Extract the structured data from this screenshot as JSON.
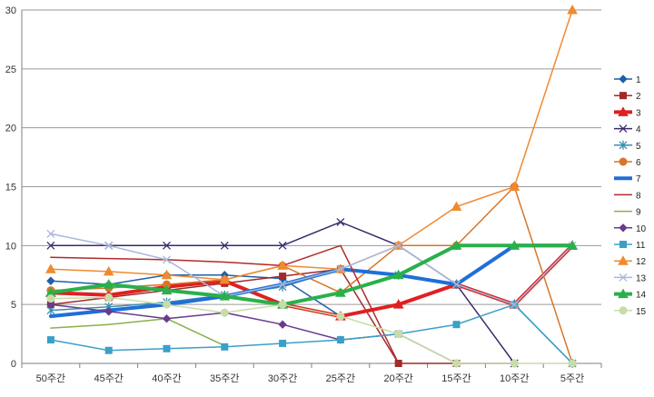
{
  "chart_data": {
    "type": "line",
    "categories": [
      "50주간",
      "45주간",
      "40주간",
      "35주간",
      "30주간",
      "25주간",
      "20주간",
      "15주간",
      "10주간",
      "5주간"
    ],
    "ylim": [
      0,
      30
    ],
    "yticks": [
      0,
      5,
      10,
      15,
      20,
      25,
      30
    ],
    "grid": true,
    "legend_position": "right",
    "series": [
      {
        "name": "1",
        "color": "#1f5fa8",
        "marker": "diamond",
        "values": [
          7,
          6.7,
          7.5,
          7.5,
          7.2,
          4,
          null,
          null,
          null,
          null
        ]
      },
      {
        "name": "2",
        "color": "#a02a2a",
        "marker": "square",
        "values": [
          5,
          5.6,
          6.2,
          6.8,
          7.4,
          8,
          0,
          0,
          null,
          null
        ]
      },
      {
        "name": "3",
        "color": "#e02020",
        "marker": "triangle",
        "values": [
          6,
          5.8,
          6.5,
          7,
          5,
          4,
          5,
          6.7,
          5,
          10
        ]
      },
      {
        "name": "4",
        "color": "#3b2a6b",
        "marker": "x",
        "values": [
          10,
          10,
          10,
          10,
          10,
          12,
          10,
          6.7,
          0,
          null
        ]
      },
      {
        "name": "5",
        "color": "#3a8fb0",
        "marker": "star",
        "values": [
          4.5,
          4.8,
          5.2,
          5.8,
          6.5,
          8,
          7.5,
          6.7,
          5,
          0
        ]
      },
      {
        "name": "6",
        "color": "#d7762a",
        "marker": "circle",
        "values": [
          6.2,
          6.4,
          6.7,
          7.1,
          8.3,
          6,
          10,
          10,
          15,
          0
        ]
      },
      {
        "name": "7",
        "color": "#1f6fd8",
        "marker": "none",
        "values": [
          4,
          4.5,
          5,
          5.7,
          6.7,
          8,
          7.5,
          6.7,
          10,
          10
        ]
      },
      {
        "name": "8",
        "color": "#b22a2a",
        "marker": "none",
        "values": [
          9,
          8.9,
          8.8,
          8.6,
          8.3,
          10,
          0,
          null,
          null,
          null
        ]
      },
      {
        "name": "9",
        "color": "#8ab04a",
        "marker": "none",
        "values": [
          3,
          3.3,
          3.8,
          1.5,
          null,
          null,
          null,
          null,
          null,
          null
        ]
      },
      {
        "name": "10",
        "color": "#6a3a8e",
        "marker": "diamond",
        "values": [
          5,
          4.4,
          3.8,
          4.3,
          3.3,
          2,
          2.5,
          0,
          0,
          null
        ]
      },
      {
        "name": "11",
        "color": "#3aa0c8",
        "marker": "square",
        "values": [
          2,
          1.1,
          1.25,
          1.4,
          1.7,
          2,
          2.5,
          3.3,
          5,
          0
        ]
      },
      {
        "name": "12",
        "color": "#f08a30",
        "marker": "triangle",
        "values": [
          8,
          7.8,
          7.5,
          7.1,
          8.3,
          8,
          10,
          13.3,
          15,
          30
        ]
      },
      {
        "name": "13",
        "color": "#a8b8d8",
        "marker": "x",
        "values": [
          11,
          10,
          8.8,
          5.7,
          6.7,
          8,
          10,
          6.7,
          5,
          10
        ]
      },
      {
        "name": "14",
        "color": "#2ab04a",
        "marker": "triangle",
        "values": [
          6,
          6.7,
          6.2,
          5.7,
          5,
          6,
          7.5,
          10,
          10,
          10
        ]
      },
      {
        "name": "15",
        "color": "#c8dca8",
        "marker": "circle",
        "values": [
          5.5,
          5.6,
          5,
          4.3,
          5,
          4,
          2.5,
          0,
          0,
          0
        ]
      }
    ]
  }
}
